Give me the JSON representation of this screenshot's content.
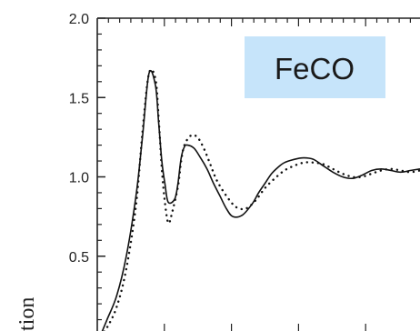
{
  "chart_data": {
    "type": "line",
    "title": "",
    "xlabel": "",
    "ylabel": "tion",
    "ylim": [
      0.0,
      2.0
    ],
    "yticks": [
      {
        "value": 0.5,
        "label": "0.5"
      },
      {
        "value": 1.0,
        "label": "1.0"
      },
      {
        "value": 1.5,
        "label": "1.5"
      },
      {
        "value": 2.0,
        "label": "2.0"
      }
    ],
    "xlim": [
      0,
      1
    ],
    "legend": {
      "label": "FeCO",
      "placement": "top-right",
      "background": "#c6e4fa"
    },
    "colors": {
      "axis": "#222222",
      "series": "#111111"
    },
    "series": [
      {
        "style": "solid",
        "x": [
          0.01,
          0.03,
          0.06,
          0.09,
          0.12,
          0.14,
          0.16,
          0.18,
          0.19,
          0.2,
          0.21,
          0.22,
          0.24,
          0.25,
          0.26,
          0.27,
          0.28,
          0.3,
          0.32,
          0.34,
          0.36,
          0.38,
          0.4,
          0.42,
          0.45,
          0.48,
          0.5,
          0.52,
          0.54,
          0.56,
          0.58,
          0.61,
          0.64,
          0.67,
          0.7,
          0.73,
          0.76,
          0.79,
          0.82,
          0.85,
          0.88,
          0.91,
          0.94,
          0.97,
          1.0
        ],
        "y": [
          0.0,
          0.1,
          0.25,
          0.5,
          0.88,
          1.25,
          1.65,
          1.58,
          1.35,
          1.1,
          0.95,
          0.84,
          0.86,
          0.96,
          1.12,
          1.19,
          1.2,
          1.18,
          1.12,
          1.05,
          0.96,
          0.88,
          0.8,
          0.75,
          0.76,
          0.83,
          0.9,
          0.96,
          1.02,
          1.06,
          1.09,
          1.11,
          1.12,
          1.11,
          1.07,
          1.03,
          1.0,
          0.99,
          1.01,
          1.04,
          1.05,
          1.04,
          1.03,
          1.04,
          1.05
        ]
      },
      {
        "style": "dotted",
        "x": [
          0.01,
          0.03,
          0.06,
          0.09,
          0.12,
          0.14,
          0.16,
          0.18,
          0.19,
          0.2,
          0.21,
          0.22,
          0.23,
          0.25,
          0.26,
          0.27,
          0.29,
          0.31,
          0.33,
          0.35,
          0.37,
          0.4,
          0.43,
          0.46,
          0.49,
          0.52,
          0.55,
          0.58,
          0.61,
          0.64,
          0.67,
          0.7,
          0.73,
          0.76,
          0.79,
          0.82,
          0.85,
          0.88,
          0.91,
          0.94,
          0.97,
          1.0
        ],
        "y": [
          0.0,
          0.05,
          0.18,
          0.42,
          0.82,
          1.28,
          1.65,
          1.62,
          1.38,
          1.05,
          0.83,
          0.71,
          0.76,
          0.94,
          1.1,
          1.2,
          1.26,
          1.25,
          1.18,
          1.08,
          0.98,
          0.88,
          0.81,
          0.8,
          0.85,
          0.93,
          0.99,
          1.04,
          1.07,
          1.09,
          1.09,
          1.08,
          1.05,
          1.02,
          1.0,
          1.0,
          1.02,
          1.04,
          1.05,
          1.04,
          1.03,
          1.04
        ]
      }
    ]
  }
}
